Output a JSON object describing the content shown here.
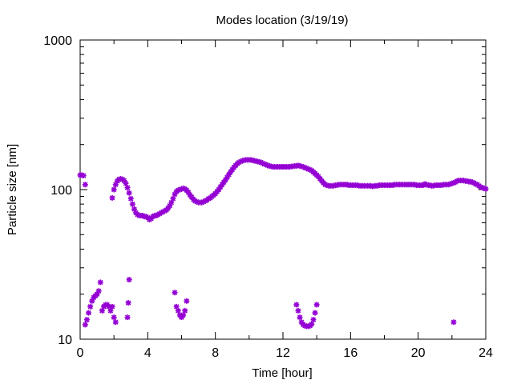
{
  "chart_data": {
    "type": "scatter",
    "title": "Modes location (3/19/19)",
    "xlabel": "Time [hour]",
    "ylabel": "Particle size [nm]",
    "xlim": [
      0,
      24
    ],
    "ylim": [
      10,
      1000
    ],
    "yscale": "log",
    "x_ticks": [
      0,
      4,
      8,
      12,
      16,
      20,
      24
    ],
    "y_ticks": [
      10,
      100,
      1000
    ],
    "grid": false,
    "legend": "none",
    "marker": "asterisk",
    "color": "#9400d3",
    "series": [
      {
        "points": [
          [
            0.0,
            125
          ],
          [
            0.1,
            125
          ],
          [
            0.2,
            124
          ],
          [
            0.3,
            108
          ],
          [
            1.9,
            88
          ],
          [
            2.0,
            100
          ],
          [
            2.1,
            108
          ],
          [
            2.2,
            114
          ],
          [
            2.3,
            117
          ],
          [
            2.4,
            118
          ],
          [
            2.5,
            117
          ],
          [
            2.6,
            115
          ],
          [
            2.7,
            110
          ],
          [
            2.8,
            103
          ],
          [
            2.9,
            95
          ],
          [
            3.0,
            87
          ],
          [
            3.1,
            80
          ],
          [
            3.2,
            74
          ],
          [
            3.3,
            70
          ],
          [
            3.4,
            68
          ],
          [
            3.5,
            67
          ],
          [
            3.6,
            67
          ],
          [
            3.7,
            67
          ],
          [
            3.8,
            66
          ],
          [
            3.9,
            66
          ],
          [
            4.0,
            65
          ],
          [
            4.1,
            63
          ],
          [
            4.2,
            64
          ],
          [
            4.3,
            66
          ],
          [
            4.4,
            67
          ],
          [
            4.5,
            67
          ],
          [
            4.6,
            68
          ],
          [
            4.7,
            69
          ],
          [
            4.8,
            70
          ],
          [
            4.9,
            71
          ],
          [
            5.0,
            72
          ],
          [
            5.1,
            73
          ],
          [
            5.2,
            75
          ],
          [
            5.3,
            78
          ],
          [
            5.4,
            82
          ],
          [
            5.5,
            87
          ],
          [
            5.6,
            93
          ],
          [
            5.7,
            97
          ],
          [
            5.8,
            99
          ],
          [
            5.9,
            100
          ],
          [
            6.0,
            101
          ],
          [
            6.1,
            102
          ],
          [
            6.2,
            101
          ],
          [
            6.3,
            99
          ],
          [
            6.4,
            96
          ],
          [
            6.5,
            92
          ],
          [
            6.6,
            89
          ],
          [
            6.7,
            86
          ],
          [
            6.8,
            84
          ],
          [
            6.9,
            83
          ],
          [
            7.0,
            82
          ],
          [
            7.1,
            82
          ],
          [
            7.2,
            82
          ],
          [
            7.3,
            83
          ],
          [
            7.4,
            84
          ],
          [
            7.5,
            85
          ],
          [
            7.6,
            87
          ],
          [
            7.7,
            88
          ],
          [
            7.8,
            90
          ],
          [
            7.9,
            92
          ],
          [
            8.0,
            94
          ],
          [
            8.1,
            97
          ],
          [
            8.2,
            100
          ],
          [
            8.3,
            104
          ],
          [
            8.4,
            108
          ],
          [
            8.5,
            112
          ],
          [
            8.6,
            116
          ],
          [
            8.7,
            121
          ],
          [
            8.8,
            126
          ],
          [
            8.9,
            131
          ],
          [
            9.0,
            136
          ],
          [
            9.1,
            141
          ],
          [
            9.2,
            145
          ],
          [
            9.3,
            149
          ],
          [
            9.4,
            152
          ],
          [
            9.5,
            154
          ],
          [
            9.6,
            156
          ],
          [
            9.7,
            157
          ],
          [
            9.8,
            158
          ],
          [
            9.9,
            158
          ],
          [
            10.0,
            158
          ],
          [
            10.1,
            158
          ],
          [
            10.2,
            157
          ],
          [
            10.3,
            156
          ],
          [
            10.4,
            155
          ],
          [
            10.5,
            154
          ],
          [
            10.6,
            153
          ],
          [
            10.7,
            152
          ],
          [
            10.8,
            150
          ],
          [
            10.9,
            148
          ],
          [
            11.0,
            147
          ],
          [
            11.1,
            145
          ],
          [
            11.2,
            144
          ],
          [
            11.3,
            143
          ],
          [
            11.4,
            142
          ],
          [
            11.5,
            142
          ],
          [
            11.6,
            142
          ],
          [
            11.7,
            142
          ],
          [
            11.8,
            142
          ],
          [
            11.9,
            142
          ],
          [
            12.0,
            142
          ],
          [
            12.1,
            142
          ],
          [
            12.2,
            142
          ],
          [
            12.3,
            142
          ],
          [
            12.4,
            142
          ],
          [
            12.5,
            143
          ],
          [
            12.6,
            143
          ],
          [
            12.7,
            144
          ],
          [
            12.8,
            144
          ],
          [
            12.9,
            145
          ],
          [
            13.0,
            144
          ],
          [
            13.1,
            143
          ],
          [
            13.2,
            142
          ],
          [
            13.3,
            140
          ],
          [
            13.4,
            139
          ],
          [
            13.5,
            137
          ],
          [
            13.6,
            136
          ],
          [
            13.7,
            134
          ],
          [
            13.8,
            131
          ],
          [
            13.9,
            128
          ],
          [
            14.0,
            125
          ],
          [
            14.1,
            122
          ],
          [
            14.2,
            118
          ],
          [
            14.3,
            114
          ],
          [
            14.4,
            111
          ],
          [
            14.5,
            108
          ],
          [
            14.6,
            107
          ],
          [
            14.7,
            106
          ],
          [
            14.8,
            106
          ],
          [
            14.9,
            106
          ],
          [
            15.0,
            106
          ],
          [
            15.1,
            107
          ],
          [
            15.2,
            107
          ],
          [
            15.3,
            108
          ],
          [
            15.4,
            108
          ],
          [
            15.5,
            108
          ],
          [
            15.6,
            108
          ],
          [
            15.7,
            108
          ],
          [
            15.8,
            108
          ],
          [
            15.9,
            107
          ],
          [
            16.0,
            107
          ],
          [
            16.1,
            107
          ],
          [
            16.2,
            107
          ],
          [
            16.3,
            107
          ],
          [
            16.4,
            107
          ],
          [
            16.5,
            106
          ],
          [
            16.6,
            106
          ],
          [
            16.7,
            106
          ],
          [
            16.8,
            106
          ],
          [
            16.9,
            106
          ],
          [
            17.0,
            106
          ],
          [
            17.1,
            106
          ],
          [
            17.2,
            106
          ],
          [
            17.3,
            105
          ],
          [
            17.4,
            106
          ],
          [
            17.5,
            106
          ],
          [
            17.6,
            106
          ],
          [
            17.7,
            107
          ],
          [
            17.8,
            107
          ],
          [
            17.9,
            107
          ],
          [
            18.0,
            107
          ],
          [
            18.1,
            107
          ],
          [
            18.2,
            107
          ],
          [
            18.3,
            107
          ],
          [
            18.4,
            107
          ],
          [
            18.5,
            107
          ],
          [
            18.6,
            108
          ],
          [
            18.7,
            108
          ],
          [
            18.8,
            108
          ],
          [
            18.9,
            108
          ],
          [
            19.0,
            108
          ],
          [
            19.1,
            108
          ],
          [
            19.2,
            108
          ],
          [
            19.3,
            108
          ],
          [
            19.4,
            108
          ],
          [
            19.5,
            108
          ],
          [
            19.6,
            108
          ],
          [
            19.7,
            108
          ],
          [
            19.8,
            108
          ],
          [
            19.9,
            107
          ],
          [
            20.0,
            107
          ],
          [
            20.1,
            107
          ],
          [
            20.2,
            107
          ],
          [
            20.3,
            107
          ],
          [
            20.4,
            109
          ],
          [
            20.5,
            108
          ],
          [
            20.6,
            107
          ],
          [
            20.7,
            107
          ],
          [
            20.8,
            106
          ],
          [
            20.9,
            106
          ],
          [
            21.0,
            107
          ],
          [
            21.1,
            107
          ],
          [
            21.2,
            107
          ],
          [
            21.3,
            107
          ],
          [
            21.4,
            107
          ],
          [
            21.5,
            108
          ],
          [
            21.6,
            108
          ],
          [
            21.7,
            108
          ],
          [
            21.8,
            108
          ],
          [
            21.9,
            109
          ],
          [
            22.0,
            110
          ],
          [
            22.1,
            111
          ],
          [
            22.2,
            112
          ],
          [
            22.3,
            114
          ],
          [
            22.4,
            115
          ],
          [
            22.5,
            115
          ],
          [
            22.6,
            115
          ],
          [
            22.7,
            115
          ],
          [
            22.8,
            114
          ],
          [
            22.9,
            114
          ],
          [
            23.0,
            113
          ],
          [
            23.1,
            113
          ],
          [
            23.2,
            112
          ],
          [
            23.3,
            111
          ],
          [
            23.4,
            109
          ],
          [
            23.5,
            108
          ],
          [
            23.6,
            106
          ],
          [
            23.7,
            104
          ],
          [
            23.8,
            103
          ],
          [
            23.9,
            102
          ],
          [
            24.0,
            101
          ],
          [
            0.3,
            12.5
          ],
          [
            0.4,
            13.5
          ],
          [
            0.5,
            15
          ],
          [
            0.6,
            16.5
          ],
          [
            0.7,
            18
          ],
          [
            0.8,
            19
          ],
          [
            0.9,
            19.5
          ],
          [
            1.0,
            20
          ],
          [
            1.1,
            21
          ],
          [
            1.2,
            24
          ],
          [
            1.3,
            15.5
          ],
          [
            1.4,
            16.5
          ],
          [
            1.5,
            17
          ],
          [
            1.6,
            17
          ],
          [
            1.7,
            16.5
          ],
          [
            1.8,
            15.5
          ],
          [
            1.9,
            16.5
          ],
          [
            2.0,
            14
          ],
          [
            2.1,
            13
          ],
          [
            2.8,
            14
          ],
          [
            2.85,
            17.5
          ],
          [
            2.9,
            25
          ],
          [
            5.6,
            20.5
          ],
          [
            5.7,
            16.5
          ],
          [
            5.8,
            15.5
          ],
          [
            5.9,
            14.5
          ],
          [
            6.0,
            14
          ],
          [
            6.1,
            14.5
          ],
          [
            6.2,
            15.5
          ],
          [
            6.3,
            18
          ],
          [
            12.8,
            17
          ],
          [
            12.9,
            15.5
          ],
          [
            13.0,
            14
          ],
          [
            13.1,
            13
          ],
          [
            13.2,
            12.5
          ],
          [
            13.3,
            12.3
          ],
          [
            13.4,
            12.2
          ],
          [
            13.5,
            12.2
          ],
          [
            13.6,
            12.3
          ],
          [
            13.7,
            12.6
          ],
          [
            13.8,
            13.5
          ],
          [
            13.9,
            15
          ],
          [
            14.0,
            17
          ],
          [
            22.1,
            13
          ]
        ]
      }
    ]
  }
}
